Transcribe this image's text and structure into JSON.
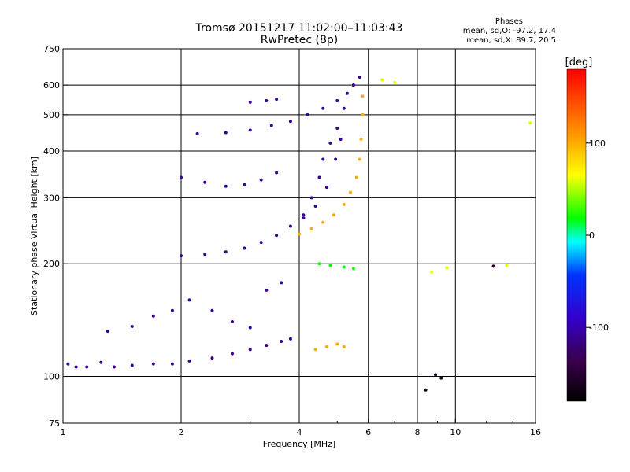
{
  "title": "Tromsø 20151217 11:02:00–11:03:43",
  "subtitle": "RwPretec (8p)",
  "phase_info": {
    "title": "Phases",
    "o_line": "mean, sd,O: -97.2, 17.4",
    "x_line": "mean, sd,X: 89.7, 20.5"
  },
  "colors": {
    "grid": "#000000",
    "blue_trace": "#2a1fe6",
    "yellow_trace": "#e8e600",
    "purple_trace": "#5a00a0"
  },
  "chart_data": {
    "type": "scatter",
    "xlabel": "Frequency [MHz]",
    "ylabel": "Stationary phase Virtual Height [km]",
    "x_scale": "log",
    "y_scale": "log",
    "xlim": [
      1,
      16
    ],
    "ylim": [
      75,
      750
    ],
    "x_ticks": [
      1,
      2,
      4,
      6,
      8,
      10,
      16
    ],
    "y_ticks": [
      75,
      100,
      200,
      300,
      400,
      500,
      600,
      750
    ],
    "x_gridlines": [
      2,
      4,
      6,
      8,
      10
    ],
    "y_gridlines": [
      100,
      200,
      300,
      400,
      500,
      600
    ],
    "grid": true,
    "colorbar": {
      "label": "[deg]",
      "min": -180,
      "max": 180,
      "ticks": [
        -100,
        0,
        100
      ]
    },
    "series": [
      {
        "color_value": -110,
        "points": [
          [
            1.03,
            108
          ],
          [
            1.08,
            106
          ],
          [
            1.15,
            106
          ],
          [
            1.25,
            109
          ],
          [
            1.35,
            106
          ],
          [
            1.5,
            107
          ],
          [
            1.7,
            108
          ],
          [
            1.9,
            108
          ],
          [
            2.1,
            110
          ],
          [
            2.4,
            112
          ],
          [
            2.7,
            115
          ],
          [
            3.0,
            118
          ],
          [
            3.3,
            121
          ],
          [
            3.6,
            124
          ],
          [
            3.8,
            126
          ]
        ]
      },
      {
        "color_value": -110,
        "points": [
          [
            1.3,
            132
          ],
          [
            1.5,
            136
          ],
          [
            1.7,
            145
          ],
          [
            1.9,
            150
          ],
          [
            2.1,
            160
          ],
          [
            2.4,
            150
          ],
          [
            2.7,
            140
          ],
          [
            3.0,
            135
          ],
          [
            3.3,
            170
          ],
          [
            3.6,
            178
          ]
        ]
      },
      {
        "color_value": -110,
        "points": [
          [
            2.0,
            210
          ],
          [
            2.3,
            212
          ],
          [
            2.6,
            215
          ],
          [
            2.9,
            220
          ],
          [
            3.2,
            228
          ],
          [
            3.5,
            238
          ],
          [
            3.8,
            252
          ],
          [
            4.1,
            265
          ],
          [
            4.4,
            285
          ],
          [
            4.7,
            320
          ],
          [
            4.95,
            380
          ],
          [
            5.1,
            430
          ]
        ]
      },
      {
        "color_value": -110,
        "points": [
          [
            2.0,
            340
          ],
          [
            2.3,
            330
          ],
          [
            2.6,
            322
          ],
          [
            2.9,
            325
          ],
          [
            3.2,
            335
          ],
          [
            3.5,
            350
          ]
        ]
      },
      {
        "color_value": -110,
        "points": [
          [
            2.2,
            445
          ],
          [
            2.6,
            448
          ],
          [
            3.0,
            455
          ],
          [
            3.4,
            468
          ],
          [
            3.8,
            480
          ],
          [
            4.2,
            500
          ],
          [
            4.6,
            520
          ],
          [
            5.0,
            545
          ],
          [
            5.3,
            570
          ],
          [
            5.5,
            600
          ]
        ]
      },
      {
        "color_value": -110,
        "points": [
          [
            3.0,
            540
          ],
          [
            3.3,
            545
          ],
          [
            3.5,
            550
          ]
        ]
      },
      {
        "color_value": -110,
        "points": [
          [
            4.1,
            270
          ],
          [
            4.3,
            300
          ],
          [
            4.5,
            340
          ],
          [
            4.6,
            380
          ],
          [
            4.8,
            420
          ],
          [
            5.0,
            460
          ],
          [
            5.2,
            520
          ],
          [
            5.5,
            600
          ],
          [
            5.7,
            630
          ]
        ]
      },
      {
        "color_value": 100,
        "points": [
          [
            4.0,
            240
          ],
          [
            4.3,
            248
          ],
          [
            4.6,
            258
          ],
          [
            4.9,
            270
          ],
          [
            5.2,
            288
          ],
          [
            5.4,
            310
          ],
          [
            5.6,
            340
          ],
          [
            5.7,
            380
          ],
          [
            5.75,
            430
          ],
          [
            5.8,
            500
          ],
          [
            5.8,
            560
          ]
        ]
      },
      {
        "color_value": 100,
        "points": [
          [
            4.4,
            118
          ],
          [
            4.7,
            120
          ],
          [
            5.0,
            122
          ],
          [
            5.2,
            120
          ]
        ]
      },
      {
        "color_value": 20,
        "points": [
          [
            4.5,
            200
          ],
          [
            4.8,
            198
          ],
          [
            5.2,
            196
          ],
          [
            5.5,
            194
          ]
        ]
      },
      {
        "color_value": -160,
        "points": [
          [
            8.4,
            92
          ],
          [
            8.9,
            101
          ],
          [
            9.2,
            99
          ],
          [
            12.5,
            197
          ]
        ]
      },
      {
        "color_value": 60,
        "points": [
          [
            6.5,
            620
          ],
          [
            7.0,
            610
          ],
          [
            8.7,
            190
          ],
          [
            9.5,
            195
          ],
          [
            13.5,
            198
          ],
          [
            15.5,
            475
          ]
        ]
      }
    ]
  }
}
